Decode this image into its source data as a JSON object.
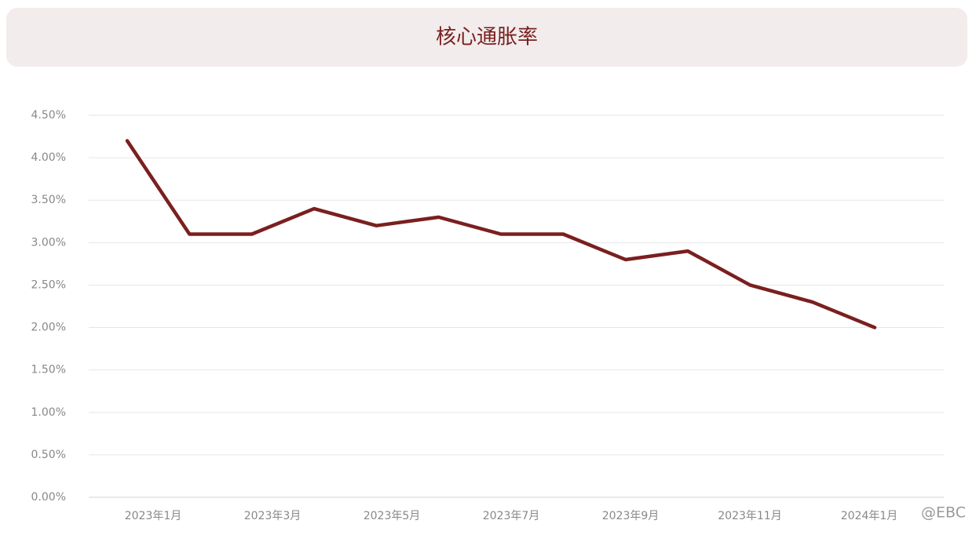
{
  "chart_data": {
    "type": "line",
    "title": "核心通胀率",
    "categories": [
      "2023年1月",
      null,
      "2023年3月",
      null,
      "2023年5月",
      null,
      "2023年7月",
      null,
      "2023年9月",
      null,
      "2023年11月",
      null,
      "2024年1月"
    ],
    "series": [
      {
        "name": "核心通胀率",
        "color": "#7a1f1f",
        "values": [
          4.2,
          3.1,
          3.1,
          3.4,
          3.2,
          3.3,
          3.1,
          3.1,
          2.8,
          2.9,
          2.5,
          2.3,
          2.0
        ]
      }
    ],
    "ylim": [
      0,
      4.5
    ],
    "yticks": [
      {
        "value": 0,
        "label": "0.00%"
      },
      {
        "value": 0.5,
        "label": "0.50%"
      },
      {
        "value": 1,
        "label": "1.00%"
      },
      {
        "value": 1.5,
        "label": "1.50%"
      },
      {
        "value": 2,
        "label": "2.00%"
      },
      {
        "value": 2.5,
        "label": "2.50%"
      },
      {
        "value": 3,
        "label": "3.00%"
      },
      {
        "value": 3.5,
        "label": "3.50%"
      },
      {
        "value": 4,
        "label": "4.00%"
      },
      {
        "value": 4.5,
        "label": "4.50%"
      }
    ],
    "grid": true,
    "watermark": "@EBC"
  }
}
